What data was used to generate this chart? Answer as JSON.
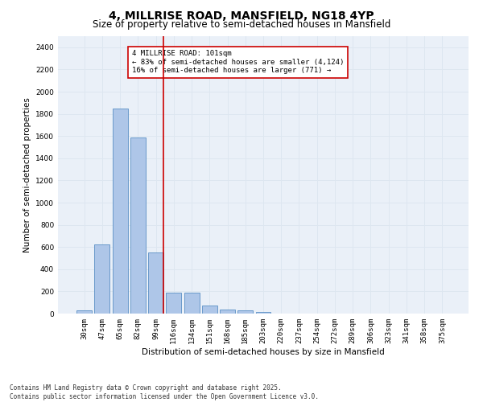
{
  "title": "4, MILLRISE ROAD, MANSFIELD, NG18 4YP",
  "subtitle": "Size of property relative to semi-detached houses in Mansfield",
  "xlabel": "Distribution of semi-detached houses by size in Mansfield",
  "ylabel": "Number of semi-detached properties",
  "categories": [
    "30sqm",
    "47sqm",
    "65sqm",
    "82sqm",
    "99sqm",
    "116sqm",
    "134sqm",
    "151sqm",
    "168sqm",
    "185sqm",
    "203sqm",
    "220sqm",
    "237sqm",
    "254sqm",
    "272sqm",
    "289sqm",
    "306sqm",
    "323sqm",
    "341sqm",
    "358sqm",
    "375sqm"
  ],
  "values": [
    30,
    620,
    1850,
    1585,
    550,
    190,
    190,
    70,
    35,
    30,
    15,
    0,
    0,
    0,
    0,
    0,
    0,
    0,
    0,
    0,
    0
  ],
  "bar_color": "#aec6e8",
  "bar_edge_color": "#5a8fc4",
  "vline_index": 4,
  "vline_color": "#cc0000",
  "annotation_label": "4 MILLRISE ROAD: 101sqm",
  "annotation_line1": "← 83% of semi-detached houses are smaller (4,124)",
  "annotation_line2": "16% of semi-detached houses are larger (771) →",
  "ylim": [
    0,
    2500
  ],
  "yticks": [
    0,
    200,
    400,
    600,
    800,
    1000,
    1200,
    1400,
    1600,
    1800,
    2000,
    2200,
    2400
  ],
  "grid_color": "#dde6f0",
  "background_color": "#eaf0f8",
  "footer_line1": "Contains HM Land Registry data © Crown copyright and database right 2025.",
  "footer_line2": "Contains public sector information licensed under the Open Government Licence v3.0.",
  "title_fontsize": 10,
  "subtitle_fontsize": 8.5,
  "axis_label_fontsize": 7.5,
  "tick_fontsize": 6.5,
  "annotation_fontsize": 6.5,
  "footer_fontsize": 5.5
}
